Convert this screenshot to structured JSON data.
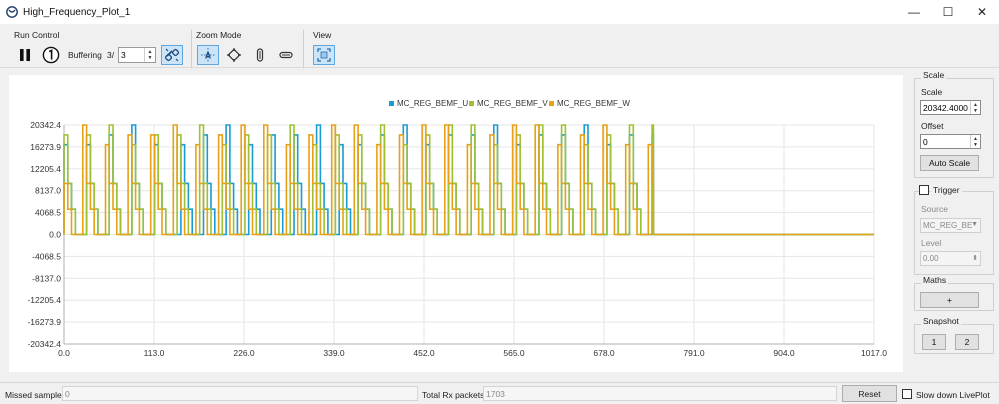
{
  "window": {
    "title": "High_Frequency_Plot_1",
    "minimize_glyph": "—",
    "maximize_glyph": "☐",
    "close_glyph": "✕"
  },
  "toolbar": {
    "run_control_label": "Run Control",
    "buffering_label": "Buffering",
    "buffering_prefix": "3/",
    "buffering_value": "3",
    "zoom_mode_label": "Zoom Mode",
    "view_label": "View",
    "icons": [
      "pause-icon",
      "single-shot-icon",
      "unlink-icon",
      "zoom-auto-icon",
      "zoom-pan-icon",
      "zoom-vertical-icon",
      "zoom-horizontal-icon",
      "fit-view-icon"
    ]
  },
  "chart_data": {
    "type": "line",
    "legend": [
      "MC_REG_BEMF_U",
      "MC_REG_BEMF_V",
      "MC_REG_BEMF_W"
    ],
    "legend_position": "top-center",
    "colors": [
      "#1a9bd3",
      "#9cc234",
      "#e6a117"
    ],
    "y_ticks": [
      "20342.4",
      "16273.9",
      "12205.4",
      "8137.0",
      "4068.5",
      "0.0",
      "-4068.5",
      "-8137.0",
      "-12205.4",
      "-16273.9",
      "-20342.4"
    ],
    "x_ticks": [
      "0.0",
      "113.0",
      "226.0",
      "339.0",
      "452.0",
      "565.0",
      "678.0",
      "791.0",
      "904.0",
      "1017.0"
    ],
    "xlim": [
      0,
      1017
    ],
    "ylim": [
      -20342.4,
      20342.4
    ],
    "grid": true,
    "signal_end_x": 740,
    "series": [
      {
        "name": "MC_REG_BEMF_U",
        "period": 14.2,
        "phase": 0,
        "levels": [
          20342.4,
          9500,
          4700
        ]
      },
      {
        "name": "MC_REG_BEMF_V",
        "period": 14.2,
        "phase": 4.7,
        "levels": [
          20342.4,
          9500,
          4700
        ]
      },
      {
        "name": "MC_REG_BEMF_W",
        "period": 14.2,
        "phase": 9.4,
        "levels": [
          20342.4,
          9500,
          4700
        ]
      }
    ]
  },
  "right_panel": {
    "scale_group": "Scale",
    "scale_label": "Scale",
    "scale_value": "20342.4000",
    "offset_label": "Offset",
    "offset_value": "0",
    "auto_scale_button": "Auto Scale",
    "trigger_label": "Trigger",
    "source_label": "Source",
    "source_value": "MC_REG_BE",
    "level_label": "Level",
    "level_value": "0.00",
    "maths_label": "Maths",
    "maths_button": "+",
    "snapshot_label": "Snapshot",
    "snapshot_1": "1",
    "snapshot_2": "2"
  },
  "status_bar": {
    "missed_samples_label": "Missed samples",
    "missed_samples_value": "0",
    "total_rx_label": "Total Rx packets",
    "total_rx_value": "1703",
    "reset_button": "Reset",
    "slow_down_label": "Slow down LivePlot"
  }
}
